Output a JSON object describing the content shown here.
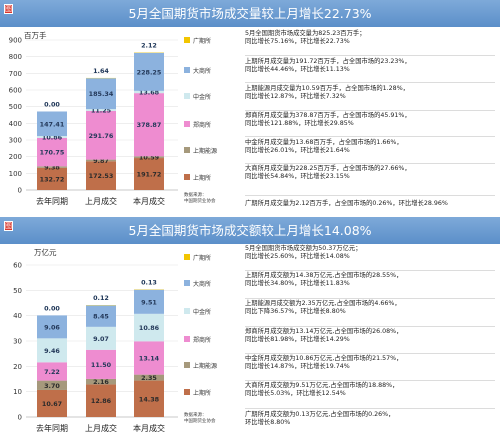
{
  "panel1": {
    "tag": "图",
    "title": "5月全国期货市场成交量较上月增长22.73%",
    "unit": "百万手",
    "source_line1": "数据来源：",
    "source_line2": "中国期货业协会",
    "legend": [
      {
        "label": "广期所",
        "color": "#f2c500"
      },
      {
        "label": "大商所",
        "color": "#8cb2de"
      },
      {
        "label": "中金所",
        "color": "#cfe9ee"
      },
      {
        "label": "郑商所",
        "color": "#ee8cd0"
      },
      {
        "label": "上期能源",
        "color": "#a6997c"
      },
      {
        "label": "上期所",
        "color": "#bf6f4a"
      }
    ],
    "descriptions": [
      "5月全国期货市场成交量为825.23百万手；\n同比增长75.16%，环比增长22.73%",
      "上期所月成交量为191.72百万手，占全国市场的23.23%，\n同比增长44.46%，环比增长11.13%",
      "上期能源月成交量为10.59百万手，占全国市场的1.28%，\n同比增长12.87%，环比增长7.32%",
      "郑商所月成交量为378.87百万手，占全国市场的45.91%，\n同比增长121.88%，环比增长29.85%",
      "中金所月成交量为13.68百万手，占全国市场的1.66%，\n同比增长26.01%，环比增长21.64%",
      "大商所月成交量为228.25百万手，占全国市场的27.66%，\n同比增长54.84%，环比增长23.15%",
      "广期所月成交量为2.12百万手，占全国市场的0.26%，环比增长28.96%"
    ]
  },
  "panel2": {
    "tag": "图",
    "title": "5月全国期货市场成交额较上月增长14.08%",
    "unit": "万亿元",
    "source_line1": "数据来源：",
    "source_line2": "中国期货业协会",
    "legend": [
      {
        "label": "广期所",
        "color": "#f2c500"
      },
      {
        "label": "大商所",
        "color": "#8cb2de"
      },
      {
        "label": "中金所",
        "color": "#cfe9ee"
      },
      {
        "label": "郑商所",
        "color": "#ee8cd0"
      },
      {
        "label": "上期能源",
        "color": "#a6997c"
      },
      {
        "label": "上期所",
        "color": "#bf6f4a"
      }
    ],
    "descriptions": [
      "5月全国期货市场成交额为50.37万亿元；\n同比增长25.60%，环比增长14.08%",
      "上期所月成交额为14.38万亿元,占全国市场的28.55%，\n同比增长34.80%，环比增长11.83%",
      "上期能源月成交额为2.35万亿元,占全国市场的4.66%，\n同比下降36.57%，环比增长8.80%",
      "郑商所月成交额为13.14万亿元,占全国市场的26.08%，\n同比增长81.98%，环比增长14.29%",
      "中金所月成交额为10.86万亿元,占全国市场的21.57%，\n同比增长14.87%，环比增长19.74%",
      "大商所月成交额为9.51万亿元,占全国市场的18.88%，\n同比增长5.03%，环比增长12.54%",
      "广期所月成交额为0.13万亿元,占全国市场的0.26%，\n环比增长8.80%"
    ]
  },
  "chart_data": [
    {
      "type": "bar",
      "stacked": true,
      "categories": [
        "去年同期",
        "上月成交",
        "本月成交"
      ],
      "ylim": [
        0,
        900
      ],
      "yticks": [
        0,
        100,
        200,
        300,
        400,
        500,
        600,
        700,
        800,
        900
      ],
      "series": [
        {
          "name": "上期所",
          "color": "#bf6f4a",
          "values": [
            132.72,
            172.53,
            191.72
          ],
          "labels": [
            "132.72",
            "172.53",
            "191.72"
          ]
        },
        {
          "name": "上期能源",
          "color": "#a6997c",
          "values": [
            9.38,
            9.87,
            10.59
          ],
          "labels": [
            "9.38",
            "9.87",
            "10.59"
          ]
        },
        {
          "name": "郑商所",
          "color": "#ee8cd0",
          "values": [
            170.75,
            291.76,
            378.87
          ],
          "labels": [
            "170.75",
            "291.76",
            "378.87"
          ]
        },
        {
          "name": "中金所",
          "color": "#cfe9ee",
          "values": [
            10.86,
            11.25,
            13.68
          ],
          "labels": [
            "10.86",
            "11.25",
            "13.68"
          ]
        },
        {
          "name": "大商所",
          "color": "#8cb2de",
          "values": [
            147.41,
            185.34,
            228.25
          ],
          "labels": [
            "147.41",
            "185.34",
            "228.25"
          ]
        },
        {
          "name": "广期所",
          "color": "#f2c500",
          "values": [
            0.0,
            1.64,
            2.12
          ],
          "labels": [
            "0.00",
            "1.64",
            "2.12"
          ]
        }
      ]
    },
    {
      "type": "bar",
      "stacked": true,
      "categories": [
        "去年同期",
        "上月成交",
        "本月成交"
      ],
      "ylim": [
        0,
        60
      ],
      "yticks": [
        0,
        10,
        20,
        30,
        40,
        50,
        60
      ],
      "series": [
        {
          "name": "上期所",
          "color": "#bf6f4a",
          "values": [
            10.67,
            12.86,
            14.38
          ],
          "labels": [
            "10.67",
            "12.86",
            "14.38"
          ]
        },
        {
          "name": "上期能源",
          "color": "#a6997c",
          "values": [
            3.7,
            2.16,
            2.35
          ],
          "labels": [
            "3.70",
            "2.16",
            "2.35"
          ]
        },
        {
          "name": "郑商所",
          "color": "#ee8cd0",
          "values": [
            7.22,
            11.5,
            13.14
          ],
          "labels": [
            "7.22",
            "11.50",
            "13.14"
          ]
        },
        {
          "name": "中金所",
          "color": "#cfe9ee",
          "values": [
            9.46,
            9.07,
            10.86
          ],
          "labels": [
            "9.46",
            "9.07",
            "10.86"
          ]
        },
        {
          "name": "大商所",
          "color": "#8cb2de",
          "values": [
            9.06,
            8.45,
            9.51
          ],
          "labels": [
            "9.06",
            "8.45",
            "9.51"
          ]
        },
        {
          "name": "广期所",
          "color": "#f2c500",
          "values": [
            0.0,
            0.12,
            0.13
          ],
          "labels": [
            "0.00",
            "0.12",
            "0.13"
          ]
        }
      ]
    }
  ]
}
